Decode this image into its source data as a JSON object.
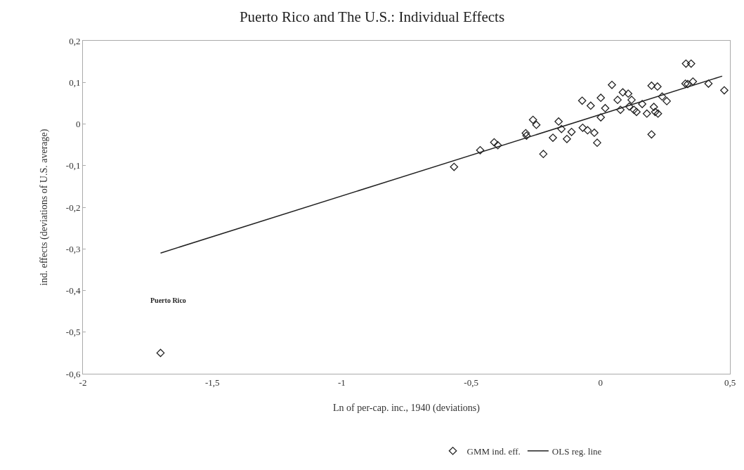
{
  "chart_data": {
    "type": "scatter",
    "title": "Puerto Rico and The U.S.: Individual Effects",
    "xlabel": "Ln of per-cap. inc., 1940 (deviations)",
    "ylabel": "ind. effects (deviations of U.S. average)",
    "xlim": [
      -2,
      0.5
    ],
    "ylim": [
      -0.6,
      0.2
    ],
    "xticks": [
      -2,
      {
        "value": -1.5,
        "label": "-1,5"
      },
      -1,
      {
        "value": -0.5,
        "label": "-0,5"
      },
      0,
      {
        "value": 0.5,
        "label": "0,5"
      }
    ],
    "yticks": [
      {
        "value": -0.6,
        "label": "-0,6"
      },
      {
        "value": -0.5,
        "label": "-0,5"
      },
      {
        "value": -0.4,
        "label": "-0,4"
      },
      {
        "value": -0.3,
        "label": "-0,3"
      },
      {
        "value": -0.2,
        "label": "-0,2"
      },
      {
        "value": -0.1,
        "label": "-0,1"
      },
      0,
      {
        "value": 0.1,
        "label": "0,1"
      },
      {
        "value": 0.2,
        "label": "0,2"
      }
    ],
    "grid": false,
    "legend": "bottom",
    "marker": "diamond",
    "annotations": [
      "Puerto Rico"
    ],
    "series": [
      {
        "name": "GMM ind. eff.",
        "color": "#222222",
        "x": [
          -1.7,
          -0.566,
          -0.465,
          -0.411,
          -0.397,
          -0.289,
          -0.286,
          -0.261,
          -0.248,
          -0.221,
          -0.184,
          -0.162,
          -0.151,
          -0.13,
          -0.112,
          -0.071,
          -0.069,
          -0.05,
          -0.038,
          -0.024,
          -0.013,
          0.001,
          0.001,
          0.018,
          0.044,
          0.066,
          0.077,
          0.086,
          0.107,
          0.111,
          0.12,
          0.129,
          0.139,
          0.161,
          0.179,
          0.197,
          0.197,
          0.206,
          0.211,
          0.22,
          0.222,
          0.238,
          0.256,
          0.328,
          0.337,
          0.357,
          0.417,
          0.478,
          0.33,
          0.35
        ],
        "values": [
          -0.55,
          -0.103,
          -0.063,
          -0.044,
          -0.051,
          -0.022,
          -0.028,
          0.01,
          -0.002,
          -0.072,
          -0.033,
          0.006,
          -0.012,
          -0.036,
          -0.019,
          0.056,
          -0.009,
          -0.015,
          0.044,
          -0.021,
          -0.045,
          0.063,
          0.016,
          0.038,
          0.094,
          0.058,
          0.034,
          0.076,
          0.073,
          0.042,
          0.058,
          0.034,
          0.029,
          0.048,
          0.025,
          0.092,
          -0.025,
          0.041,
          0.029,
          0.09,
          0.025,
          0.066,
          0.055,
          0.097,
          0.096,
          0.102,
          0.097,
          0.081,
          0.145,
          0.145
        ]
      },
      {
        "name": "OLS reg. line",
        "type": "line",
        "color": "#222222",
        "line_style": "solid",
        "marker": "none",
        "x": [
          -1.7,
          0.47
        ],
        "values": [
          -0.31,
          0.115
        ]
      }
    ]
  }
}
